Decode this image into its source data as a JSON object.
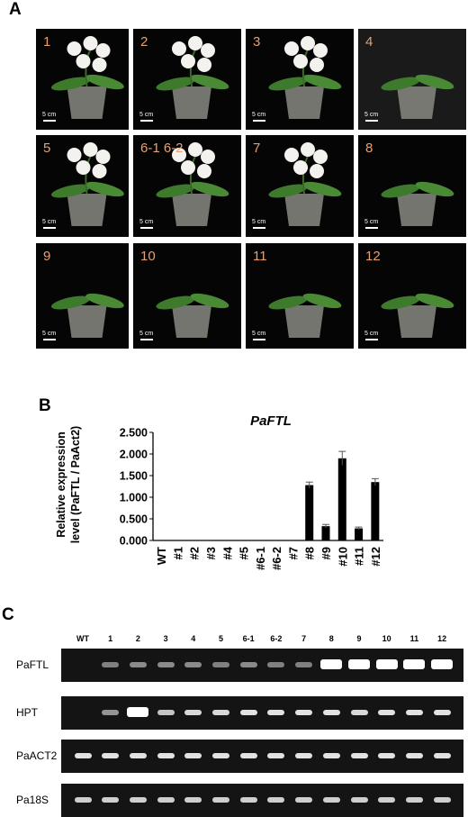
{
  "panel_letters": {
    "a": "A",
    "b": "B",
    "c": "C"
  },
  "panel_a": {
    "scale_text": "5 cm",
    "tiles": [
      {
        "label": "1"
      },
      {
        "label": "2"
      },
      {
        "label": "3"
      },
      {
        "label": "4"
      },
      {
        "label": "5"
      },
      {
        "label": "6-1  6-2"
      },
      {
        "label": "7"
      },
      {
        "label": "8"
      },
      {
        "label": "9"
      },
      {
        "label": "10"
      },
      {
        "label": "11"
      },
      {
        "label": "12"
      }
    ]
  },
  "chart_data": {
    "type": "bar",
    "title": "PaFTL",
    "ylabel_line1": "Relative expression",
    "ylabel_line2": "level (PaFTL / PaAct2)",
    "categories": [
      "WT",
      "#1",
      "#2",
      "#3",
      "#4",
      "#5",
      "#6-1",
      "#6-2",
      "#7",
      "#8",
      "#9",
      "#10",
      "#11",
      "#12"
    ],
    "values": [
      0,
      0,
      0,
      0,
      0,
      0,
      0,
      0,
      0,
      1.28,
      0.33,
      1.9,
      0.28,
      1.35
    ],
    "errors": [
      0,
      0,
      0,
      0,
      0,
      0,
      0,
      0,
      0,
      0.07,
      0.04,
      0.16,
      0.03,
      0.08
    ],
    "ylim": [
      0,
      2.5
    ],
    "yticks": [
      "0.000",
      "0.500",
      "1.000",
      "1.500",
      "2.000",
      "2.500"
    ],
    "bar_color": "#000000"
  },
  "panel_c": {
    "lanes": [
      "WT",
      "1",
      "2",
      "3",
      "4",
      "5",
      "6-1",
      "6-2",
      "7",
      "8",
      "9",
      "10",
      "11",
      "12"
    ],
    "gels": [
      {
        "label": "PaFTL",
        "bands": [
          0,
          0.35,
          0.4,
          0.4,
          0.4,
          0.35,
          0.4,
          0.35,
          0.35,
          1,
          1,
          1,
          1,
          1
        ]
      },
      {
        "label": "HPT",
        "bands": [
          0,
          0.45,
          1,
          0.7,
          0.8,
          0.8,
          0.85,
          0.85,
          0.85,
          0.85,
          0.8,
          0.85,
          0.85,
          0.85
        ]
      },
      {
        "label": "PaACT2",
        "bands": [
          0.85,
          0.85,
          0.85,
          0.85,
          0.85,
          0.85,
          0.85,
          0.85,
          0.85,
          0.85,
          0.85,
          0.85,
          0.85,
          0.85
        ]
      },
      {
        "label": "Pa18S",
        "bands": [
          0.75,
          0.75,
          0.75,
          0.75,
          0.75,
          0.75,
          0.75,
          0.75,
          0.75,
          0.75,
          0.75,
          0.75,
          0.75,
          0.75
        ]
      }
    ]
  }
}
